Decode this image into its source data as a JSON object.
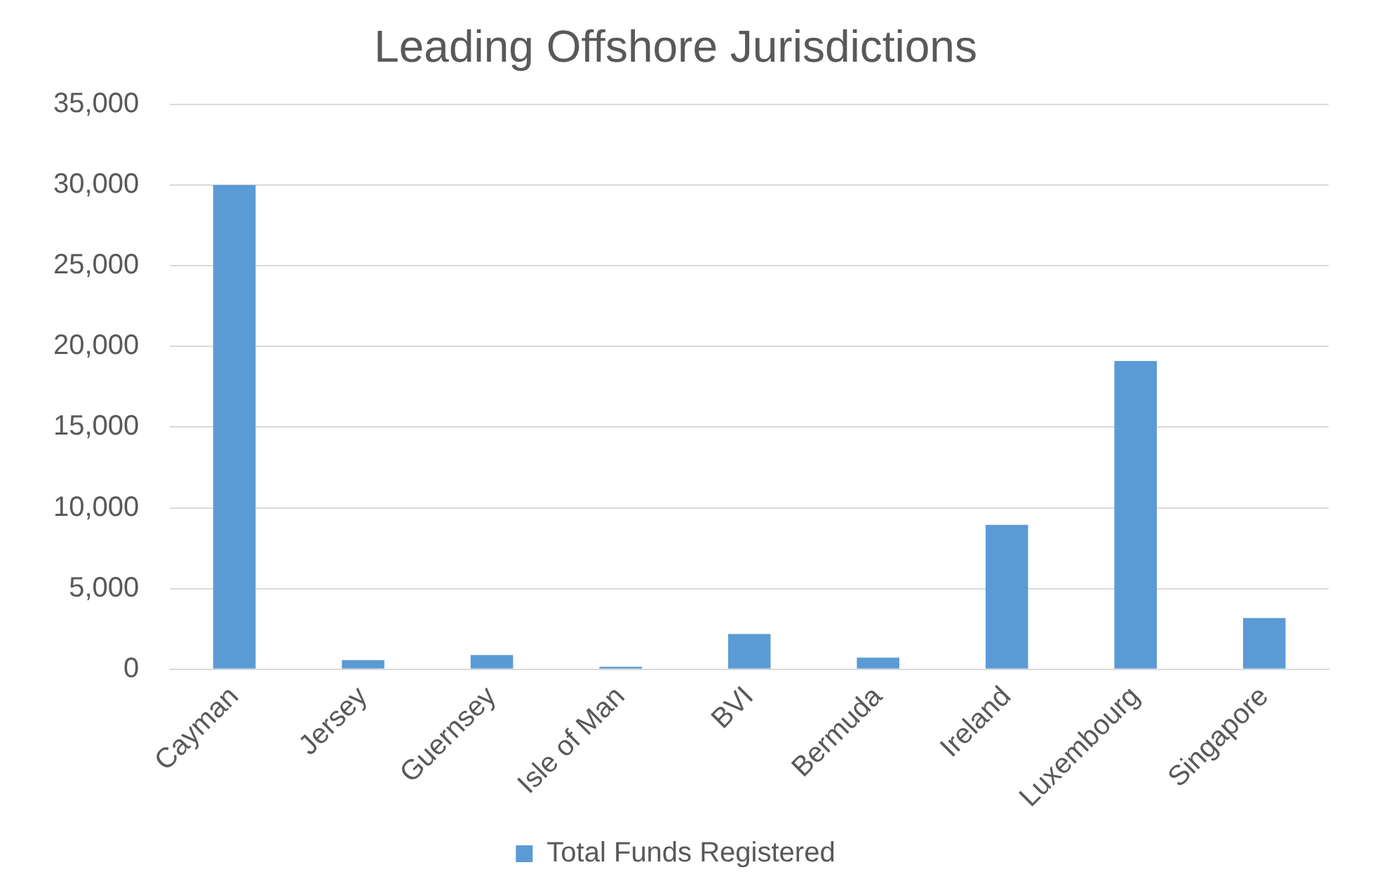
{
  "chart_data": {
    "type": "bar",
    "title": "Leading Offshore Jurisdictions",
    "categories": [
      "Cayman",
      "Jersey",
      "Guernsey",
      "Isle of Man",
      "BVI",
      "Bermuda",
      "Ireland",
      "Luxembourg",
      "Singapore"
    ],
    "series": [
      {
        "name": "Total Funds Registered",
        "color": "#5b9bd5",
        "values": [
          30000,
          570,
          880,
          160,
          2190,
          720,
          8950,
          19100,
          3170
        ]
      }
    ],
    "ylim": [
      0,
      35000
    ],
    "yticks": [
      {
        "value": 0,
        "label": "0"
      },
      {
        "value": 5000,
        "label": "5,000"
      },
      {
        "value": 10000,
        "label": "10,000"
      },
      {
        "value": 15000,
        "label": "15,000"
      },
      {
        "value": 20000,
        "label": "20,000"
      },
      {
        "value": 25000,
        "label": "25,000"
      },
      {
        "value": 30000,
        "label": "30,000"
      },
      {
        "value": 35000,
        "label": "35,000"
      }
    ],
    "grid": "y",
    "legend": "bottom"
  }
}
